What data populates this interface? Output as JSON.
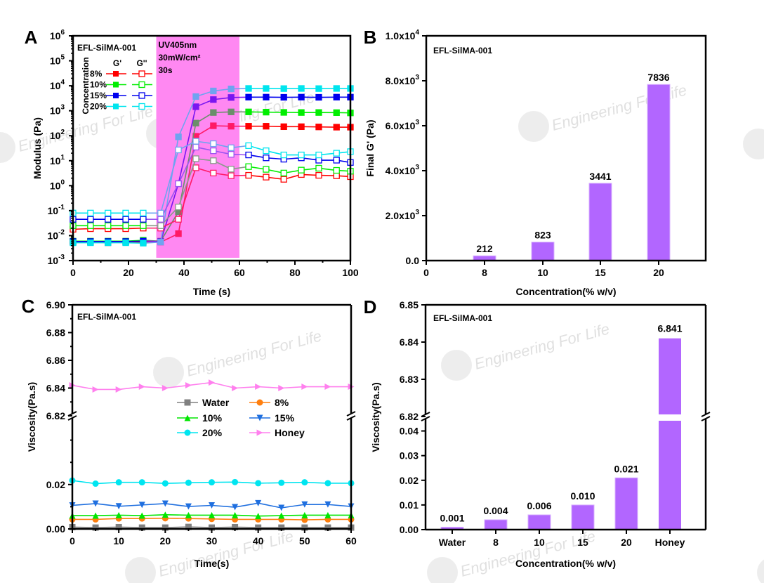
{
  "chart_data": [
    {
      "panel": "A",
      "type": "line",
      "annotation": "EFL-SilMA-001",
      "uv_box": {
        "label_lines": [
          "UV405nm",
          "30mW/cm²",
          "30s"
        ],
        "x_range": [
          30,
          60
        ],
        "color": "#ff88f2"
      },
      "xlabel": "Time (s)",
      "ylabel": "Modulus (Pa)",
      "xlim": [
        0,
        100
      ],
      "ylim_log10": [
        -3,
        6
      ],
      "yscale": "log",
      "x_ticks": [
        "0",
        "20",
        "40",
        "60",
        "80",
        "100"
      ],
      "y_ticks": [
        {
          "base": "10",
          "exp": "6"
        },
        {
          "base": "10",
          "exp": "5"
        },
        {
          "base": "10",
          "exp": "4"
        },
        {
          "base": "10",
          "exp": "3"
        },
        {
          "base": "10",
          "exp": "2"
        },
        {
          "base": "10",
          "exp": "1"
        },
        {
          "base": "10",
          "exp": "0"
        },
        {
          "base": "10",
          "exp": "-1"
        },
        {
          "base": "10",
          "exp": "-2"
        },
        {
          "base": "10",
          "exp": "-3"
        }
      ],
      "legend": {
        "title": "Concentration",
        "col_headers": [
          "G'",
          "G''"
        ],
        "rows": [
          "8%",
          "10%",
          "15%",
          "20%"
        ]
      },
      "x": [
        0,
        6.3,
        12.6,
        19,
        25.3,
        31.6,
        38,
        44.3,
        50.6,
        57,
        63.3,
        69.6,
        76,
        82.3,
        88.6,
        95,
        100
      ],
      "series": [
        {
          "name": "8% G'",
          "color": "#ff0000",
          "filled": true,
          "uv_color": "#ff1a66",
          "values": [
            0.0055,
            0.0055,
            0.0052,
            0.0055,
            0.0055,
            0.0055,
            0.012,
            95,
            250,
            240,
            240,
            240,
            230,
            230,
            225,
            220,
            220
          ]
        },
        {
          "name": "10% G'",
          "color": "#00ee00",
          "filled": true,
          "uv_color": "#6b8e6b",
          "values": [
            0.006,
            0.006,
            0.006,
            0.006,
            0.0065,
            0.006,
            0.09,
            320,
            850,
            900,
            900,
            880,
            860,
            850,
            850,
            840,
            820
          ]
        },
        {
          "name": "15% G'",
          "color": "#0000ee",
          "filled": true,
          "uv_color": "#7a16f0",
          "values": [
            0.0058,
            0.0058,
            0.0058,
            0.0058,
            0.006,
            0.0058,
            1.2,
            1450,
            2800,
            3400,
            3500,
            3500,
            3450,
            3500,
            3450,
            3500,
            3500
          ]
        },
        {
          "name": "20% G'",
          "color": "#00e5ee",
          "filled": true,
          "uv_color": "#6fa3f0",
          "values": [
            0.0052,
            0.0052,
            0.0052,
            0.0052,
            0.005,
            0.0055,
            90,
            3700,
            6200,
            7500,
            7800,
            7800,
            7700,
            7800,
            7700,
            7800,
            7800
          ]
        },
        {
          "name": "8% G''",
          "color": "#ff0000",
          "filled": false,
          "uv_color": "#ff1a66",
          "values": [
            0.018,
            0.019,
            0.019,
            0.019,
            0.02,
            0.02,
            0.045,
            5.2,
            3.2,
            2.5,
            2.6,
            2.2,
            1.8,
            2.8,
            2.6,
            2.5,
            2.3
          ]
        },
        {
          "name": "10% G''",
          "color": "#00ee00",
          "filled": false,
          "uv_color": "#8a9a8a",
          "values": [
            0.025,
            0.025,
            0.025,
            0.025,
            0.025,
            0.025,
            0.14,
            12,
            10,
            4.6,
            5.8,
            4.5,
            3.2,
            4.2,
            5.0,
            4.1,
            3.8
          ]
        },
        {
          "name": "15% G''",
          "color": "#0000ee",
          "filled": false,
          "uv_color": "#9b55f0",
          "values": [
            0.045,
            0.045,
            0.045,
            0.045,
            0.045,
            0.045,
            1.2,
            35,
            25,
            18,
            17,
            13,
            11.5,
            13,
            10.5,
            10.5,
            8.5
          ]
        },
        {
          "name": "20% G''",
          "color": "#00e5ee",
          "filled": false,
          "uv_color": "#6fa3f0",
          "values": [
            0.08,
            0.08,
            0.08,
            0.08,
            0.08,
            0.08,
            27,
            60,
            48,
            33,
            40,
            25,
            17,
            17,
            17,
            20,
            23
          ]
        }
      ]
    },
    {
      "panel": "B",
      "type": "bar",
      "annotation": "EFL-SilMA-001",
      "xlabel": "Concentration(% w/v)",
      "ylabel": "Final G' (Pa)",
      "x_ticks": [
        "0",
        "8",
        "10",
        "15",
        "20"
      ],
      "categories": [
        "8",
        "10",
        "15",
        "20"
      ],
      "values": [
        212,
        823,
        3441,
        7836
      ],
      "value_labels": [
        "212",
        "823",
        "3441",
        "7836"
      ],
      "ylim": [
        0,
        10000
      ],
      "y_ticks": [
        {
          "mant": "0.0",
          "exp": ""
        },
        {
          "mant": "2.0x10",
          "exp": "3"
        },
        {
          "mant": "4.0x10",
          "exp": "3"
        },
        {
          "mant": "6.0x10",
          "exp": "3"
        },
        {
          "mant": "8.0x10",
          "exp": "3"
        },
        {
          "mant": "1.0x10",
          "exp": "4"
        }
      ],
      "bar_color": "#b266ff"
    },
    {
      "panel": "C",
      "type": "line",
      "annotation": "EFL-SilMA-001",
      "xlabel": "Time(s)",
      "ylabel": "Viscosity(Pa.s)",
      "xlim": [
        0,
        60
      ],
      "ylim_lower": [
        0,
        0.05
      ],
      "ylim_upper": [
        6.82,
        6.9
      ],
      "axis_break": 6.82,
      "x_ticks": [
        "0",
        "10",
        "20",
        "30",
        "40",
        "50",
        "60"
      ],
      "y_ticks_lower": [
        "0.00",
        "0.02"
      ],
      "y_ticks_upper": [
        "6.82",
        "6.84",
        "6.86",
        "6.88",
        "6.90"
      ],
      "x": [
        0,
        5,
        10,
        15,
        20,
        25,
        30,
        35,
        40,
        45,
        50,
        55,
        60
      ],
      "series": [
        {
          "name": "Water",
          "color": "#808080",
          "marker": "square",
          "values": [
            0.0008,
            0.0006,
            0.0008,
            0.0006,
            0.0006,
            0.0009,
            0.0006,
            0.0008,
            0.0006,
            0.0006,
            0.0006,
            0.0006,
            0.0006
          ]
        },
        {
          "name": "8%",
          "color": "#ff7f0e",
          "marker": "circle",
          "values": [
            0.0043,
            0.0043,
            0.0047,
            0.0047,
            0.0048,
            0.0047,
            0.0045,
            0.0043,
            0.0043,
            0.0043,
            0.0041,
            0.0043,
            0.0043
          ]
        },
        {
          "name": "10%",
          "color": "#00e600",
          "marker": "triangle-up",
          "values": [
            0.006,
            0.006,
            0.0062,
            0.006,
            0.0064,
            0.0062,
            0.0062,
            0.0062,
            0.0058,
            0.006,
            0.0062,
            0.0062,
            0.0062
          ]
        },
        {
          "name": "15%",
          "color": "#1f6fdf",
          "marker": "triangle-down",
          "values": [
            0.0106,
            0.0114,
            0.0102,
            0.0108,
            0.0114,
            0.0101,
            0.0106,
            0.0098,
            0.0116,
            0.0095,
            0.011,
            0.011,
            0.0101
          ]
        },
        {
          "name": "20%",
          "color": "#00e5f0",
          "marker": "circle",
          "values": [
            0.0218,
            0.0204,
            0.021,
            0.021,
            0.0205,
            0.0208,
            0.021,
            0.0211,
            0.0206,
            0.0208,
            0.021,
            0.0206,
            0.0206
          ]
        },
        {
          "name": "Honey",
          "color": "#ff80ee",
          "marker": "triangle-right",
          "values": [
            6.842,
            6.839,
            6.839,
            6.841,
            6.84,
            6.842,
            6.844,
            6.84,
            6.841,
            6.84,
            6.841,
            6.841,
            6.841
          ]
        }
      ],
      "legend": [
        "Water",
        "8%",
        "10%",
        "15%",
        "20%",
        "Honey"
      ]
    },
    {
      "panel": "D",
      "type": "bar",
      "annotation": "EFL-SilMA-001",
      "xlabel": "Concentration(% w/v)",
      "ylabel": "Viscosity(Pa.s)",
      "categories": [
        "Water",
        "8",
        "10",
        "15",
        "20",
        "Honey"
      ],
      "values": [
        0.001,
        0.004,
        0.006,
        0.01,
        0.021,
        6.841
      ],
      "value_labels": [
        "0.001",
        "0.004",
        "0.006",
        "0.010",
        "0.021",
        "6.841"
      ],
      "ylim_lower": [
        0,
        0.045
      ],
      "ylim_upper": [
        6.82,
        6.85
      ],
      "axis_break": 6.82,
      "y_ticks_lower": [
        "0.00",
        "0.01",
        "0.02",
        "0.03",
        "0.04"
      ],
      "y_ticks_upper": [
        "6.82",
        "6.83",
        "6.84",
        "6.85"
      ],
      "bar_color": "#b266ff"
    }
  ],
  "panel_labels": [
    "A",
    "B",
    "C",
    "D"
  ],
  "watermark": {
    "text": "Engineering For Life",
    "logo": "EF2"
  }
}
